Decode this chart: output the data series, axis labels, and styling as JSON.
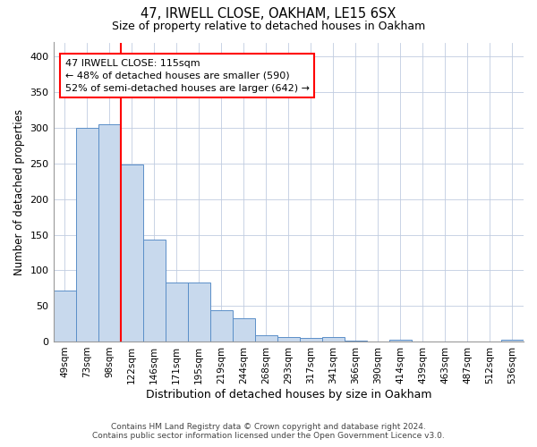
{
  "title": "47, IRWELL CLOSE, OAKHAM, LE15 6SX",
  "subtitle": "Size of property relative to detached houses in Oakham",
  "xlabel": "Distribution of detached houses by size in Oakham",
  "ylabel": "Number of detached properties",
  "bar_color": "#c8d9ed",
  "bar_edgecolor": "#5b8fc8",
  "vline_color": "red",
  "annotation_line1": "47 IRWELL CLOSE: 115sqm",
  "annotation_line2": "← 48% of detached houses are smaller (590)",
  "annotation_line3": "52% of semi-detached houses are larger (642) →",
  "categories": [
    "49sqm",
    "73sqm",
    "98sqm",
    "122sqm",
    "146sqm",
    "171sqm",
    "195sqm",
    "219sqm",
    "244sqm",
    "268sqm",
    "293sqm",
    "317sqm",
    "341sqm",
    "366sqm",
    "390sqm",
    "414sqm",
    "439sqm",
    "463sqm",
    "487sqm",
    "512sqm",
    "536sqm"
  ],
  "values": [
    72,
    300,
    305,
    248,
    143,
    83,
    83,
    44,
    32,
    9,
    6,
    5,
    6,
    1,
    0,
    3,
    0,
    0,
    0,
    0,
    3
  ],
  "ylim": [
    0,
    420
  ],
  "yticks": [
    0,
    50,
    100,
    150,
    200,
    250,
    300,
    350,
    400
  ],
  "footer1": "Contains HM Land Registry data © Crown copyright and database right 2024.",
  "footer2": "Contains public sector information licensed under the Open Government Licence v3.0.",
  "property_bar_index": 2
}
